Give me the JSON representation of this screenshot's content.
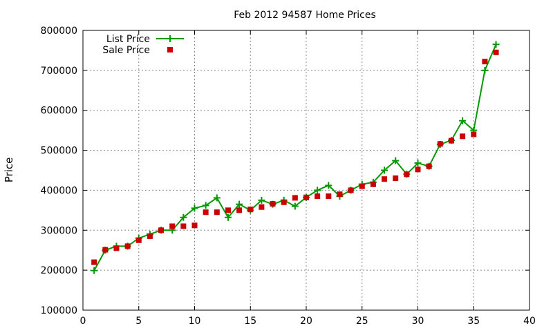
{
  "chart_data": {
    "type": "line",
    "title": "Feb 2012 94587 Home Prices",
    "xlabel": "",
    "ylabel": "Price",
    "xlim": [
      0,
      40
    ],
    "ylim": [
      100000,
      800000
    ],
    "xticks": [
      0,
      5,
      10,
      15,
      20,
      25,
      30,
      35,
      40
    ],
    "yticks": [
      100000,
      200000,
      300000,
      400000,
      500000,
      600000,
      700000,
      800000
    ],
    "grid": true,
    "legend_position": "top-left",
    "x": [
      1,
      2,
      3,
      4,
      5,
      6,
      7,
      8,
      9,
      10,
      11,
      12,
      13,
      14,
      15,
      16,
      17,
      18,
      19,
      20,
      21,
      22,
      23,
      24,
      25,
      26,
      27,
      28,
      29,
      30,
      31,
      32,
      33,
      34,
      35,
      36,
      37
    ],
    "series": [
      {
        "name": "List Price",
        "style": "line-points",
        "marker": "plus",
        "color": "#009900",
        "values": [
          199000,
          250000,
          260000,
          260000,
          280000,
          290000,
          300000,
          300000,
          332000,
          355000,
          362000,
          381000,
          332000,
          365000,
          350000,
          375000,
          365000,
          375000,
          360000,
          382000,
          400000,
          412000,
          385000,
          400000,
          415000,
          420000,
          450000,
          474000,
          440000,
          468000,
          460000,
          515000,
          525000,
          574000,
          550000,
          700000,
          765000
        ]
      },
      {
        "name": "Sale Price",
        "style": "points",
        "marker": "square",
        "color": "#cc0000",
        "values": [
          220000,
          251000,
          255000,
          260000,
          275000,
          285000,
          300000,
          310000,
          310000,
          312000,
          345000,
          345000,
          350000,
          350000,
          352000,
          358000,
          366000,
          370000,
          381000,
          382000,
          385000,
          385000,
          390000,
          400000,
          410000,
          415000,
          428000,
          430000,
          440000,
          452000,
          460000,
          516000,
          524000,
          535000,
          540000,
          722000,
          745000
        ]
      }
    ]
  }
}
